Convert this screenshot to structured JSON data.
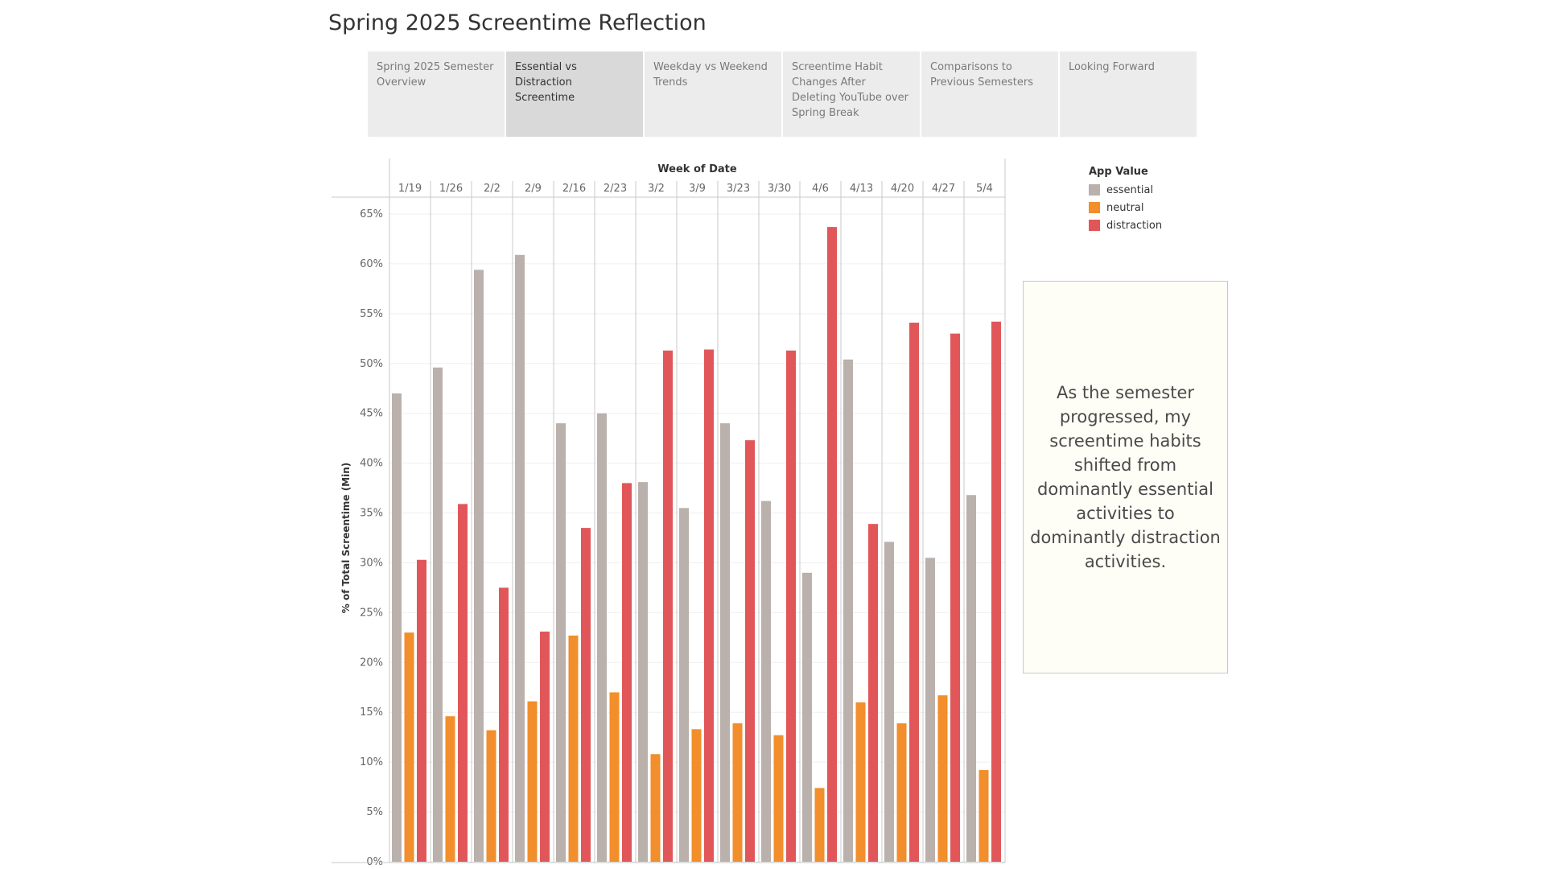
{
  "page": {
    "title": "Spring 2025 Screentime Reflection"
  },
  "tabs": [
    {
      "label": "Spring 2025 Semester Overview",
      "active": false
    },
    {
      "label": "Essential vs Distraction Screentime",
      "active": true
    },
    {
      "label": "Weekday vs Weekend Trends",
      "active": false
    },
    {
      "label": "Screentime Habit Changes After Deleting YouTube over Spring Break",
      "active": false
    },
    {
      "label": "Comparisons to Previous Semesters",
      "active": false
    },
    {
      "label": "Looking Forward",
      "active": false
    }
  ],
  "legend": {
    "title": "App Value",
    "items": [
      {
        "label": "essential",
        "color": "#bab0ac"
      },
      {
        "label": "neutral",
        "color": "#f28e2b"
      },
      {
        "label": "distraction",
        "color": "#e15759"
      }
    ]
  },
  "note": {
    "text": "As the semester progressed, my screentime habits shifted from dominantly essential activities to dominantly distraction activities."
  },
  "chart_data": {
    "type": "bar",
    "xlabel": "Week of Date",
    "ylabel": "% of Total Screentime (Min)",
    "ylim": [
      0,
      65
    ],
    "yticks": [
      0,
      5,
      10,
      15,
      20,
      25,
      30,
      35,
      40,
      45,
      50,
      55,
      60,
      65
    ],
    "ytick_suffix": "%",
    "categories": [
      "1/19",
      "1/26",
      "2/2",
      "2/9",
      "2/16",
      "2/23",
      "3/2",
      "3/9",
      "3/23",
      "3/30",
      "4/6",
      "4/13",
      "4/20",
      "4/27",
      "5/4"
    ],
    "series": [
      {
        "name": "essential",
        "color": "#bab0ac",
        "values": [
          47.0,
          49.6,
          59.4,
          60.9,
          44.0,
          45.0,
          38.1,
          35.5,
          44.0,
          36.2,
          29.0,
          50.4,
          32.1,
          30.5,
          36.8
        ]
      },
      {
        "name": "neutral",
        "color": "#f28e2b",
        "values": [
          23.0,
          14.6,
          13.2,
          16.1,
          22.7,
          17.0,
          10.8,
          13.3,
          13.9,
          12.7,
          7.4,
          16.0,
          13.9,
          16.7,
          9.2
        ]
      },
      {
        "name": "distraction",
        "color": "#e15759",
        "values": [
          30.3,
          35.9,
          27.5,
          23.1,
          33.5,
          38.0,
          51.3,
          51.4,
          42.3,
          51.3,
          63.7,
          33.9,
          54.1,
          53.0,
          54.2
        ]
      }
    ],
    "grid": true,
    "legend_position": "right"
  }
}
